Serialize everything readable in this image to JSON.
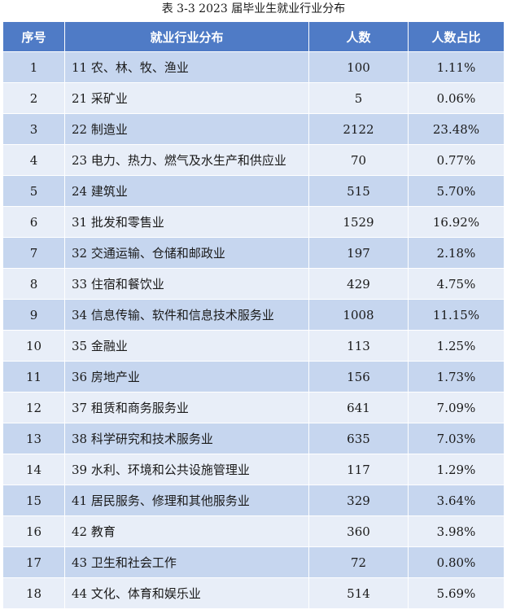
{
  "caption": "表 3-3    2023 届毕业生就业行业分布",
  "headers": {
    "index": "序号",
    "industry": "就业行业分布",
    "count": "人数",
    "share": "人数占比"
  },
  "colors": {
    "header_bg": "#4f7bc6",
    "row_odd_bg": "#c6d6ef",
    "row_even_bg": "#e8eef8"
  },
  "rows": [
    {
      "index": "1",
      "industry": "11 农、林、牧、渔业",
      "count": "100",
      "share": "1.11%"
    },
    {
      "index": "2",
      "industry": "21 采矿业",
      "count": "5",
      "share": "0.06%"
    },
    {
      "index": "3",
      "industry": "22 制造业",
      "count": "2122",
      "share": "23.48%"
    },
    {
      "index": "4",
      "industry": "23 电力、热力、燃气及水生产和供应业",
      "count": "70",
      "share": "0.77%"
    },
    {
      "index": "5",
      "industry": "24 建筑业",
      "count": "515",
      "share": "5.70%"
    },
    {
      "index": "6",
      "industry": "31 批发和零售业",
      "count": "1529",
      "share": "16.92%"
    },
    {
      "index": "7",
      "industry": "32 交通运输、仓储和邮政业",
      "count": "197",
      "share": "2.18%"
    },
    {
      "index": "8",
      "industry": "33 住宿和餐饮业",
      "count": "429",
      "share": "4.75%"
    },
    {
      "index": "9",
      "industry": "34 信息传输、软件和信息技术服务业",
      "count": "1008",
      "share": "11.15%"
    },
    {
      "index": "10",
      "industry": "35 金融业",
      "count": "113",
      "share": "1.25%"
    },
    {
      "index": "11",
      "industry": "36 房地产业",
      "count": "156",
      "share": "1.73%"
    },
    {
      "index": "12",
      "industry": "37 租赁和商务服务业",
      "count": "641",
      "share": "7.09%"
    },
    {
      "index": "13",
      "industry": "38 科学研究和技术服务业",
      "count": "635",
      "share": "7.03%"
    },
    {
      "index": "14",
      "industry": "39 水利、环境和公共设施管理业",
      "count": "117",
      "share": "1.29%"
    },
    {
      "index": "15",
      "industry": "41 居民服务、修理和其他服务业",
      "count": "329",
      "share": "3.64%"
    },
    {
      "index": "16",
      "industry": "42 教育",
      "count": "360",
      "share": "3.98%"
    },
    {
      "index": "17",
      "industry": "43 卫生和社会工作",
      "count": "72",
      "share": "0.80%"
    },
    {
      "index": "18",
      "industry": "44 文化、体育和娱乐业",
      "count": "514",
      "share": "5.69%"
    }
  ]
}
